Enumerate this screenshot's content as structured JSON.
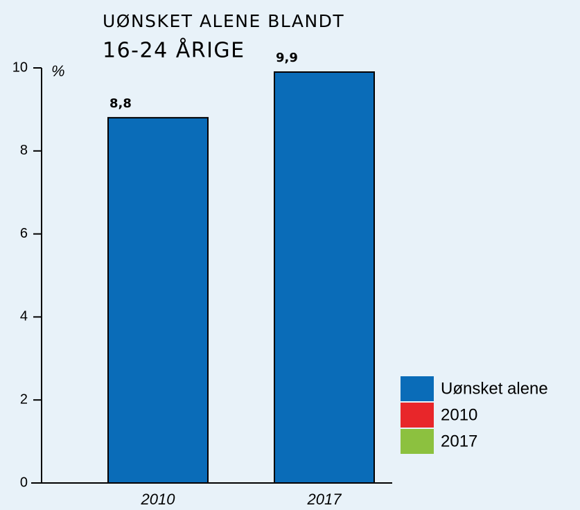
{
  "chart_data": {
    "type": "bar",
    "title": [
      "UØNSKET ALENE BLANDT",
      "16-24 ÅRIGE"
    ],
    "y_label": "%",
    "categories": [
      "2010",
      "2017"
    ],
    "series": [
      {
        "name": "Uønsket alene",
        "color": "#0a6cb8",
        "values": [
          8.8,
          9.9
        ],
        "value_labels": [
          "8,8",
          "9,9"
        ]
      },
      {
        "name": "2010",
        "color": "#e8262a",
        "values": [
          null,
          null
        ]
      },
      {
        "name": "2017",
        "color": "#8cc13f",
        "values": [
          null,
          null
        ]
      }
    ],
    "ylim": [
      0,
      10
    ],
    "yticks": [
      0,
      2,
      4,
      6,
      8,
      10
    ],
    "grid": false
  }
}
